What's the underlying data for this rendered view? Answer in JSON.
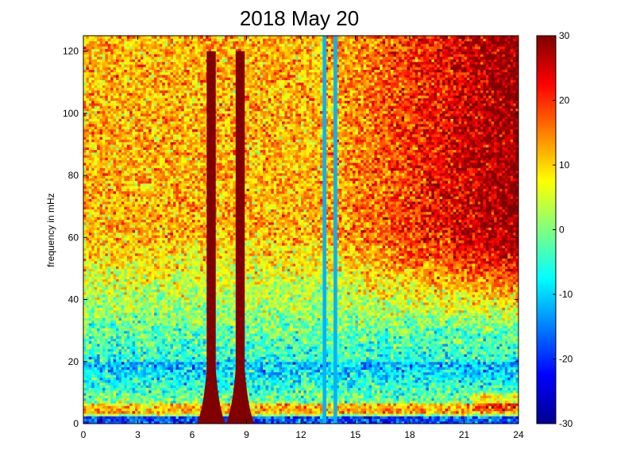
{
  "chart_data": {
    "type": "heatmap",
    "title": "2018 May 20",
    "xlabel": "",
    "ylabel": "frequency in mHz",
    "xlim": [
      0,
      24
    ],
    "ylim": [
      0,
      125
    ],
    "x_ticks": [
      "0",
      "3",
      "6",
      "9",
      "12",
      "15",
      "18",
      "21",
      "24"
    ],
    "y_ticks": [
      "0",
      "20",
      "40",
      "60",
      "80",
      "100",
      "120"
    ],
    "colorbar": {
      "range": [
        -30,
        30
      ],
      "ticks": [
        "30",
        "20",
        "10",
        "0",
        "-10",
        "-20",
        "-30"
      ],
      "colormap": "jet"
    },
    "bands": [
      {
        "x_from": 6.8,
        "x_to": 7.3,
        "y_to": 120,
        "value": 30
      },
      {
        "x_from": 8.4,
        "x_to": 8.9,
        "y_to": 120,
        "value": 30
      },
      {
        "x_from": 13.2,
        "x_to": 13.4,
        "y_to": 125,
        "value": -12
      },
      {
        "x_from": 13.8,
        "x_to": 14.0,
        "y_to": 125,
        "value": -12
      }
    ],
    "colors": {
      "background": "#ffffff",
      "axis": "#000000",
      "saturated_high": "#800000",
      "saturated_low": "#000080"
    }
  }
}
